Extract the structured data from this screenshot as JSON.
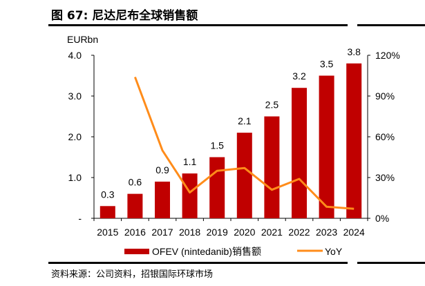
{
  "title": "图 67: 尼达尼布全球销售额",
  "source": "资料来源：公司资料，招银国际环球市场",
  "chart_data": {
    "type": "bar+line",
    "categories": [
      "2015",
      "2016",
      "2017",
      "2018",
      "2019",
      "2020",
      "2021",
      "2022",
      "2023",
      "2024"
    ],
    "series": [
      {
        "name": "OFEV (nintedanib)销售额",
        "type": "bar",
        "axis": "left",
        "color": "#C00000",
        "values": [
          0.3,
          0.6,
          0.9,
          1.1,
          1.5,
          2.1,
          2.5,
          3.2,
          3.5,
          3.8
        ],
        "labels": [
          "0.3",
          "0.6",
          "0.9",
          "1.1",
          "1.5",
          "2.1",
          "2.5",
          "3.2",
          "3.5",
          "3.8"
        ]
      },
      {
        "name": "YoY",
        "type": "line",
        "axis": "right",
        "color": "#FF8C1A",
        "values": [
          null,
          104,
          50,
          19,
          35,
          37,
          21,
          29,
          8.5,
          7
        ]
      }
    ],
    "ylabel_left": "EURbn",
    "ylim_left": [
      0,
      4.0
    ],
    "yticks_left": [
      "-",
      "1.0",
      "2.0",
      "3.0",
      "4.0"
    ],
    "ylim_right": [
      0,
      120
    ],
    "yticks_right": [
      "0%",
      "30%",
      "60%",
      "90%",
      "120%"
    ],
    "grid": false,
    "legend": "bottom"
  }
}
